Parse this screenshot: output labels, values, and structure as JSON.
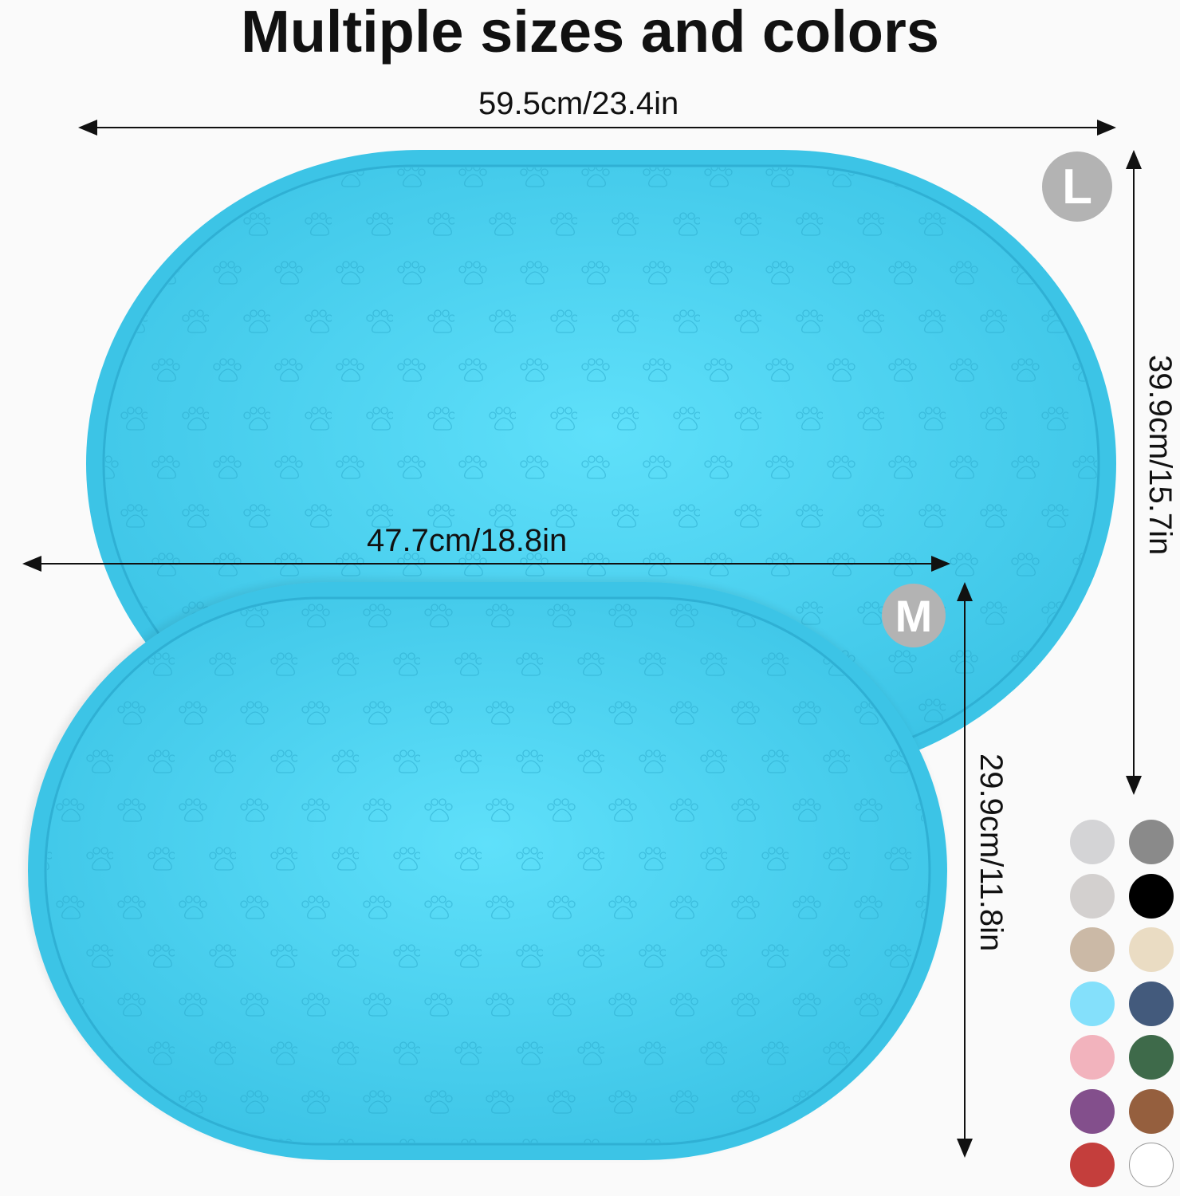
{
  "title": "Multiple sizes and colors",
  "large": {
    "badge": "L",
    "width_label": "59.5cm/23.4in",
    "height_label": "39.9cm/15.7in"
  },
  "medium": {
    "badge": "M",
    "width_label": "47.7cm/18.8in",
    "height_label": "29.9cm/11.8in"
  },
  "mat_color": "#3cc4e6",
  "swatches": [
    "#d4d4d6",
    "#8a8a8a",
    "#d3d0cf",
    "#000000",
    "#cbb9a6",
    "#eadcc3",
    "#84e0fb",
    "#435a7c",
    "#f2b3bd",
    "#3e6a4a",
    "#834f8c",
    "#955f3e",
    "#c43e3c",
    "#ffffff"
  ]
}
